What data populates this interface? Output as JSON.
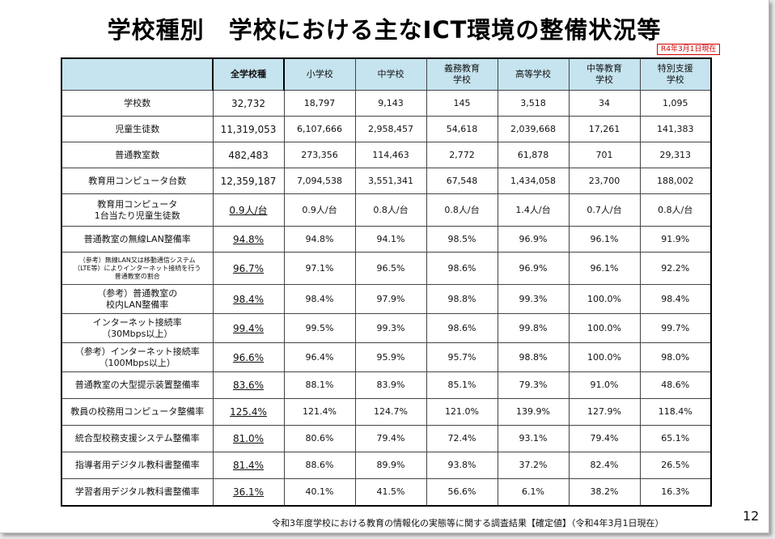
{
  "title": "学校種別　学校における主なICT環境の整備状況等",
  "as_of": "R4年3月1日現在",
  "headers": [
    "",
    "全学校種",
    "小学校",
    "中学校",
    "義務教育\n学校",
    "高等学校",
    "中等教育\n学校",
    "特別支援\n学校"
  ],
  "rows": [
    {
      "label": "学校数",
      "values": [
        "32,732",
        "18,797",
        "9,143",
        "145",
        "3,518",
        "34",
        "1,095"
      ]
    },
    {
      "label": "児童生徒数",
      "values": [
        "11,319,053",
        "6,107,666",
        "2,958,457",
        "54,618",
        "2,039,668",
        "17,261",
        "141,383"
      ]
    },
    {
      "label": "普通教室数",
      "values": [
        "482,483",
        "273,356",
        "114,463",
        "2,772",
        "61,878",
        "701",
        "29,313"
      ]
    },
    {
      "label": "教育用コンピュータ台数",
      "values": [
        "12,359,187",
        "7,094,538",
        "3,551,341",
        "67,548",
        "1,434,058",
        "23,700",
        "188,002"
      ]
    },
    {
      "label": "教育用コンピュータ\n1台当たり児童生徒数",
      "values": [
        "0.9人/台",
        "0.9人/台",
        "0.8人/台",
        "0.8人/台",
        "1.4人/台",
        "0.7人/台",
        "0.8人/台"
      ],
      "underline": true
    },
    {
      "label": "普通教室の無線LAN整備率",
      "values": [
        "94.8%",
        "94.8%",
        "94.1%",
        "98.5%",
        "96.9%",
        "96.1%",
        "91.9%"
      ],
      "underline": true
    },
    {
      "label": "（参考）無線LAN又は移動通信システム\n（LTE等）によりインターネット接続を行う\n普通教室の割合",
      "values": [
        "96.7%",
        "97.1%",
        "96.5%",
        "98.6%",
        "96.9%",
        "96.1%",
        "92.2%"
      ],
      "underline": true,
      "tiny": true
    },
    {
      "label": "（参考）普通教室の\n校内LAN整備率",
      "values": [
        "98.4%",
        "98.4%",
        "97.9%",
        "98.8%",
        "99.3%",
        "100.0%",
        "98.4%"
      ],
      "underline": true
    },
    {
      "label": "インターネット接続率\n（30Mbps以上）",
      "values": [
        "99.4%",
        "99.5%",
        "99.3%",
        "98.6%",
        "99.8%",
        "100.0%",
        "99.7%"
      ],
      "underline": true
    },
    {
      "label": "（参考）インターネット接続率\n（100Mbps以上）",
      "values": [
        "96.6%",
        "96.4%",
        "95.9%",
        "95.7%",
        "98.8%",
        "100.0%",
        "98.0%"
      ],
      "underline": true
    },
    {
      "label": "普通教室の大型提示装置整備率",
      "values": [
        "83.6%",
        "88.1%",
        "83.9%",
        "85.1%",
        "79.3%",
        "91.0%",
        "48.6%"
      ],
      "underline": true
    },
    {
      "label": "教員の校務用コンピュータ整備率",
      "values": [
        "125.4%",
        "121.4%",
        "124.7%",
        "121.0%",
        "139.9%",
        "127.9%",
        "118.4%"
      ],
      "underline": true
    },
    {
      "label": "統合型校務支援システム整備率",
      "values": [
        "81.0%",
        "80.6%",
        "79.4%",
        "72.4%",
        "93.1%",
        "79.4%",
        "65.1%"
      ],
      "underline": true
    },
    {
      "label": "指導者用デジタル教科書整備率",
      "values": [
        "81.4%",
        "88.6%",
        "89.9%",
        "93.8%",
        "37.2%",
        "82.4%",
        "26.5%"
      ],
      "underline": true
    },
    {
      "label": "学習者用デジタル教科書整備率",
      "values": [
        "36.1%",
        "40.1%",
        "41.5%",
        "56.6%",
        "6.1%",
        "38.2%",
        "16.3%"
      ],
      "underline": true
    }
  ],
  "footer": "令和3年度学校における教育の情報化の実態等に関する調査結果【確定値】（令和4年3月1日現在）",
  "page_number": "12"
}
